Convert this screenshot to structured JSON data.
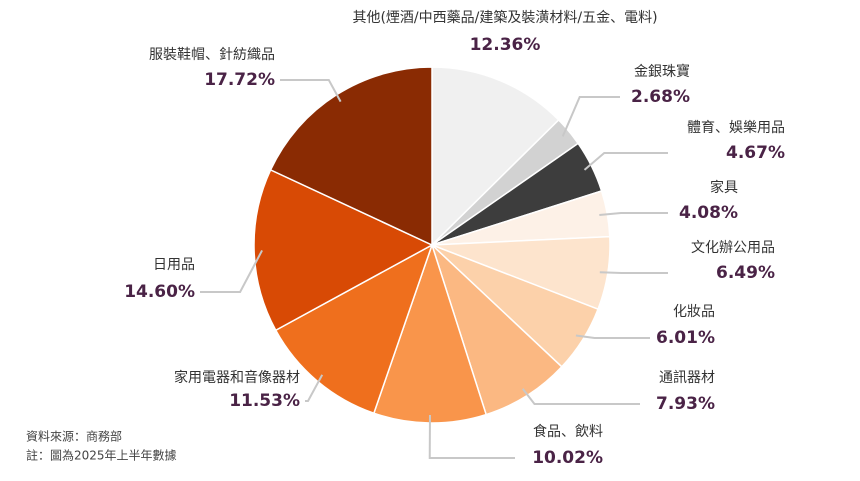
{
  "chart_data": {
    "type": "pie",
    "categories": [
      "其他(煙酒/中西藥品/建築及裝潢材料/五金、電料)",
      "金銀珠寶",
      "體育、娛樂用品",
      "家具",
      "文化辦公用品",
      "化妝品",
      "通訊器材",
      "食品、飲料",
      "家用電器和音像器材",
      "日用品",
      "服裝鞋帽、針紡織品"
    ],
    "values": [
      12.36,
      2.68,
      4.67,
      4.08,
      6.49,
      6.01,
      7.93,
      10.02,
      11.53,
      14.6,
      17.72
    ],
    "value_labels": [
      "12.36%",
      "2.68%",
      "4.67%",
      "4.08%",
      "6.49%",
      "6.01%",
      "7.93%",
      "10.02%",
      "11.53%",
      "14.60%",
      "17.72%"
    ],
    "colors": [
      "#f0f0f0",
      "#d2d2d2",
      "#3d3d3d",
      "#fdf1e7",
      "#fde4cd",
      "#fcd1aa",
      "#fbb882",
      "#f9954b",
      "#ef6f1d",
      "#d84a05",
      "#8a2b03"
    ]
  },
  "notes": [
    "資料來源：商務部",
    "註：圖為2025年上半年數據"
  ]
}
